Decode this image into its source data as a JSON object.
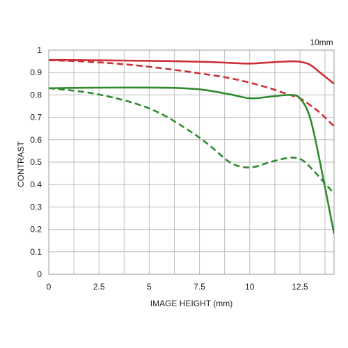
{
  "chart_data": {
    "type": "line",
    "title": "10mm",
    "xlabel": "IMAGE HEIGHT (mm)",
    "ylabel": "CONTRAST",
    "xlim": [
      0,
      14.2
    ],
    "ylim": [
      0,
      1
    ],
    "x_ticks": [
      0,
      2.5,
      5,
      7.5,
      10,
      12.5
    ],
    "x_tick_labels": [
      "0",
      "2.5",
      "5",
      "7.5",
      "10",
      "12.5"
    ],
    "y_ticks": [
      0,
      0.1,
      0.2,
      0.3,
      0.4,
      0.5,
      0.6,
      0.7,
      0.8,
      0.9,
      1
    ],
    "y_tick_labels": [
      "0",
      "0.1",
      "0.2",
      "0.3",
      "0.4",
      "0.5",
      "0.6",
      "0.7",
      "0.8",
      "0.9",
      "1"
    ],
    "x_grid_values": [
      0,
      1.25,
      2.5,
      3.75,
      5,
      6.25,
      7.5,
      8.75,
      10,
      11.25,
      12.5,
      13.75
    ],
    "grid": true,
    "series": [
      {
        "color": "#cc2f36",
        "dash": "solid",
        "x": [
          0,
          2,
          4,
          6,
          8,
          9,
          10,
          11,
          12,
          12.5,
          13,
          13.5,
          14.2
        ],
        "y": [
          0.956,
          0.955,
          0.953,
          0.951,
          0.947,
          0.943,
          0.94,
          0.945,
          0.95,
          0.948,
          0.935,
          0.9,
          0.85
        ]
      },
      {
        "color": "#cc2f36",
        "dash": "dashed",
        "x": [
          0,
          2,
          4,
          6,
          8,
          9,
          10,
          11,
          12,
          12.5,
          13,
          13.5,
          14.2
        ],
        "y": [
          0.955,
          0.948,
          0.935,
          0.915,
          0.89,
          0.875,
          0.855,
          0.83,
          0.8,
          0.785,
          0.755,
          0.72,
          0.66
        ]
      },
      {
        "color": "#2f8a2f",
        "dash": "solid",
        "x": [
          0,
          2,
          4,
          6,
          7.5,
          9,
          10,
          11,
          12,
          12.5,
          13,
          13.5,
          14.2
        ],
        "y": [
          0.83,
          0.832,
          0.833,
          0.832,
          0.825,
          0.803,
          0.785,
          0.792,
          0.8,
          0.785,
          0.7,
          0.5,
          0.18
        ]
      },
      {
        "color": "#2f8a2f",
        "dash": "dashed",
        "x": [
          0,
          2,
          4,
          5.5,
          7,
          8,
          9,
          9.7,
          10.3,
          11,
          12,
          12.6,
          13.2,
          13.7,
          14.2
        ],
        "y": [
          0.83,
          0.81,
          0.77,
          0.72,
          0.64,
          0.575,
          0.5,
          0.478,
          0.48,
          0.5,
          0.52,
          0.51,
          0.46,
          0.41,
          0.36
        ]
      }
    ]
  }
}
